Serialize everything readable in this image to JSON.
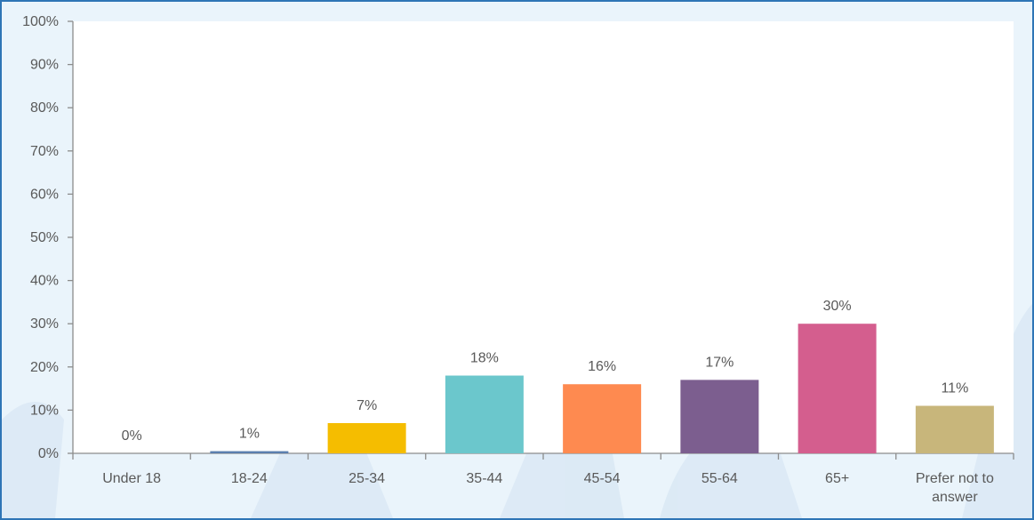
{
  "colors": {
    "frame_border": "#2e75b6",
    "background": "#eaf4fb",
    "plot_area": "#ffffff",
    "axis": "#8c8c8c",
    "text": "#595959"
  },
  "chart_data": {
    "type": "bar",
    "categories": [
      "Under 18",
      "18-24",
      "25-34",
      "35-44",
      "45-54",
      "55-64",
      "65+",
      "Prefer not to answer"
    ],
    "category_label_lines": [
      [
        "Under 18"
      ],
      [
        "18-24"
      ],
      [
        "25-34"
      ],
      [
        "35-44"
      ],
      [
        "45-54"
      ],
      [
        "55-64"
      ],
      [
        "65+"
      ],
      [
        "Prefer not to",
        "answer"
      ]
    ],
    "values": [
      0,
      0.5,
      7,
      18,
      16,
      17,
      30,
      11
    ],
    "data_labels": [
      "0%",
      "1%",
      "7%",
      "18%",
      "16%",
      "17%",
      "30%",
      "11%"
    ],
    "colors": [
      "#4472c4",
      "#5b7fae",
      "#f5bd00",
      "#6bc7cc",
      "#fe8a50",
      "#7c5e8f",
      "#d45e8e",
      "#c8b67b"
    ],
    "ylim": [
      0,
      100
    ],
    "yticks": [
      0,
      10,
      20,
      30,
      40,
      50,
      60,
      70,
      80,
      90,
      100
    ],
    "ytick_labels": [
      "0%",
      "10%",
      "20%",
      "30%",
      "40%",
      "50%",
      "60%",
      "70%",
      "80%",
      "90%",
      "100%"
    ],
    "title": "",
    "xlabel": "",
    "ylabel": "",
    "grid": false,
    "legend": "none"
  }
}
